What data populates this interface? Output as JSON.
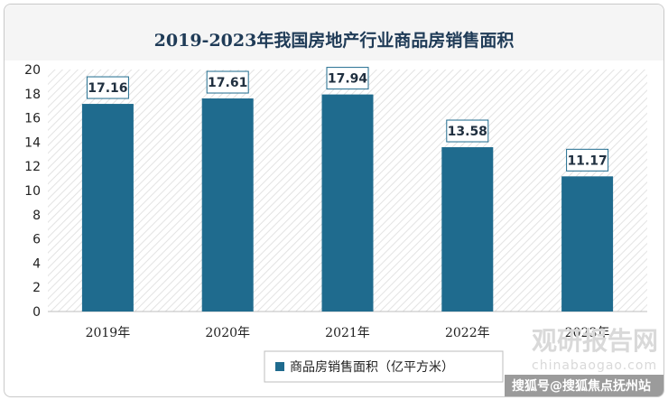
{
  "chart_data": {
    "type": "bar",
    "title": "2019-2023年我国房地产行业商品房销售面积",
    "categories": [
      "2019年",
      "2020年",
      "2021年",
      "2022年",
      "2023年"
    ],
    "values": [
      17.16,
      17.61,
      17.94,
      13.58,
      11.17
    ],
    "data_labels": [
      "17.16",
      "17.61",
      "17.94",
      "13.58",
      "11.17"
    ],
    "series": [
      {
        "name": "商品房销售面积（亿平方米）",
        "values": [
          17.16,
          17.61,
          17.94,
          13.58,
          11.17
        ]
      }
    ],
    "y_ticks": [
      "0",
      "2",
      "4",
      "6",
      "8",
      "10",
      "12",
      "14",
      "16",
      "18",
      "20"
    ],
    "ylim": [
      0,
      20
    ],
    "grid": false,
    "legend_position": "bottom",
    "bar_color": "#1f6b8e"
  },
  "watermark": {
    "brand": "观研报告网",
    "domain": "chinabaogao.com",
    "credit": "搜狐号@搜狐焦点抚州站"
  }
}
